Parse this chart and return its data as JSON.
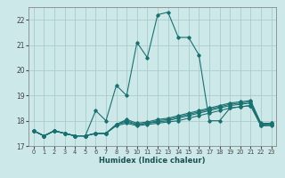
{
  "xlabel": "Humidex (Indice chaleur)",
  "xlim": [
    -0.5,
    23.5
  ],
  "ylim": [
    17,
    22.5
  ],
  "yticks": [
    17,
    18,
    19,
    20,
    21,
    22
  ],
  "xticks": [
    0,
    1,
    2,
    3,
    4,
    5,
    6,
    7,
    8,
    9,
    10,
    11,
    12,
    13,
    14,
    15,
    16,
    17,
    18,
    19,
    20,
    21,
    22,
    23
  ],
  "bg_color": "#cde8e8",
  "grid_color": "#aacccc",
  "line_color": "#1a7070",
  "curves": [
    {
      "x": [
        0,
        1,
        2,
        3,
        4,
        5,
        6,
        7,
        8,
        9,
        10,
        11,
        12,
        13,
        14,
        15,
        16,
        17,
        18,
        19,
        20,
        21,
        22,
        23
      ],
      "y": [
        17.6,
        17.4,
        17.6,
        17.5,
        17.4,
        17.4,
        18.4,
        18.0,
        19.4,
        19.0,
        21.1,
        20.5,
        22.2,
        22.3,
        21.3,
        21.3,
        20.6,
        18.0,
        18.0,
        18.5,
        18.55,
        18.6,
        17.8,
        17.9
      ]
    },
    {
      "x": [
        0,
        1,
        2,
        3,
        4,
        5,
        6,
        7,
        8,
        9,
        10,
        11,
        12,
        13,
        14,
        15,
        16,
        17,
        18,
        19,
        20,
        21,
        22,
        23
      ],
      "y": [
        17.6,
        17.4,
        17.6,
        17.5,
        17.4,
        17.4,
        17.5,
        17.5,
        17.8,
        17.9,
        17.8,
        17.85,
        17.9,
        17.95,
        18.0,
        18.1,
        18.2,
        18.3,
        18.4,
        18.5,
        18.55,
        18.6,
        17.8,
        17.8
      ]
    },
    {
      "x": [
        0,
        1,
        2,
        3,
        4,
        5,
        6,
        7,
        8,
        9,
        10,
        11,
        12,
        13,
        14,
        15,
        16,
        17,
        18,
        19,
        20,
        21,
        22,
        23
      ],
      "y": [
        17.6,
        17.4,
        17.6,
        17.5,
        17.4,
        17.4,
        17.5,
        17.5,
        17.85,
        17.95,
        17.85,
        17.9,
        17.95,
        18.0,
        18.1,
        18.2,
        18.3,
        18.4,
        18.5,
        18.6,
        18.65,
        18.7,
        17.85,
        17.85
      ]
    },
    {
      "x": [
        0,
        1,
        2,
        3,
        4,
        5,
        6,
        7,
        8,
        9,
        10,
        11,
        12,
        13,
        14,
        15,
        16,
        17,
        18,
        19,
        20,
        21,
        22,
        23
      ],
      "y": [
        17.6,
        17.4,
        17.6,
        17.5,
        17.4,
        17.4,
        17.5,
        17.5,
        17.85,
        18.0,
        17.85,
        17.9,
        18.0,
        18.05,
        18.15,
        18.25,
        18.35,
        18.45,
        18.55,
        18.65,
        18.7,
        18.75,
        17.85,
        17.85
      ]
    },
    {
      "x": [
        0,
        1,
        2,
        3,
        4,
        5,
        6,
        7,
        8,
        9,
        10,
        11,
        12,
        13,
        14,
        15,
        16,
        17,
        18,
        19,
        20,
        21,
        22,
        23
      ],
      "y": [
        17.6,
        17.4,
        17.6,
        17.5,
        17.4,
        17.4,
        17.5,
        17.5,
        17.85,
        18.05,
        17.9,
        17.95,
        18.05,
        18.1,
        18.2,
        18.3,
        18.4,
        18.5,
        18.6,
        18.7,
        18.75,
        18.8,
        17.9,
        17.9
      ]
    }
  ]
}
